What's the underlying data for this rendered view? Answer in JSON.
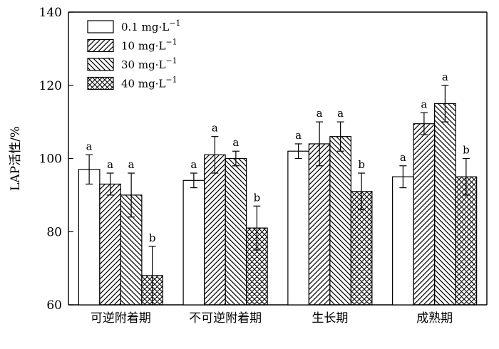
{
  "chart_data": {
    "type": "bar",
    "ylabel": "LAP活性/%",
    "xlabel": "",
    "ylim": [
      60,
      140
    ],
    "yticks": [
      60,
      80,
      100,
      120,
      140
    ],
    "categories": [
      "可逆附着期",
      "不可逆附着期",
      "生长期",
      "成熟期"
    ],
    "legend_position": "top-left",
    "grid": false,
    "series": [
      {
        "name": "0.1 mg·L",
        "name_sup": "−1",
        "pattern": "none",
        "values": [
          97,
          94,
          102,
          95
        ],
        "errors": [
          4,
          2,
          2,
          3
        ],
        "labels": [
          "a",
          "a",
          "a",
          "a"
        ]
      },
      {
        "name": "10 mg·L",
        "name_sup": "−1",
        "pattern": "diag-forward",
        "values": [
          93,
          101,
          104,
          109.5
        ],
        "errors": [
          3,
          5,
          6,
          3
        ],
        "labels": [
          "a",
          "a",
          "a",
          "a"
        ]
      },
      {
        "name": "30 mg·L",
        "name_sup": "−1",
        "pattern": "diag-backward",
        "values": [
          90,
          100,
          106,
          115
        ],
        "errors": [
          6,
          2,
          4,
          5
        ],
        "labels": [
          "a",
          "a",
          "a",
          "a"
        ]
      },
      {
        "name": "40 mg·L",
        "name_sup": "−1",
        "pattern": "crosshatch",
        "values": [
          68,
          81,
          91,
          95
        ],
        "errors": [
          8,
          6,
          5,
          5
        ],
        "labels": [
          "b",
          "b",
          "b",
          "b"
        ]
      }
    ]
  }
}
